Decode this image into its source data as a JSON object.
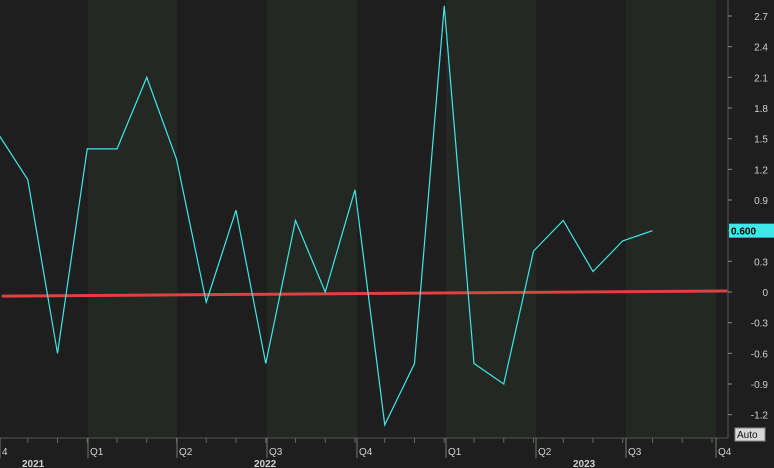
{
  "colors": {
    "background": "#1e1e1e",
    "band": "#232823",
    "gridline": "#3a3a3a",
    "series": "#3ee8e8",
    "trend": "#e04040",
    "text": "#d0d0d0"
  },
  "chart_data": {
    "type": "line",
    "title": "",
    "xlabel": "",
    "ylabel": "",
    "ylim": [
      -1.45,
      2.9
    ],
    "y_ticks": [
      "2.7",
      "2.4",
      "2.1",
      "1.8",
      "1.5",
      "1.2",
      "0.9",
      "0.6",
      "0.3",
      "0",
      "-0.3",
      "-0.6",
      "-0.9",
      "-1.2"
    ],
    "grid": false,
    "legend": "none",
    "x_quarter_labels": [
      "4",
      "Q1",
      "Q2",
      "Q3",
      "Q4",
      "Q1",
      "Q2",
      "Q3",
      "Q4"
    ],
    "x_year_labels": [
      "2021",
      "2022",
      "2023"
    ],
    "series": [
      {
        "values": [
          1.55,
          1.1,
          -0.6,
          1.4,
          1.4,
          2.1,
          1.3,
          -0.1,
          0.8,
          -0.7,
          0.7,
          0.0,
          1.0,
          -1.3,
          -0.7,
          2.8,
          -0.7,
          -0.9,
          0.4,
          0.7,
          0.2,
          0.5,
          0.6
        ]
      }
    ],
    "trend_line": {
      "start": -0.04,
      "end": 0.01
    },
    "last_value_label": "0.600",
    "scale_mode_label": "Auto"
  }
}
